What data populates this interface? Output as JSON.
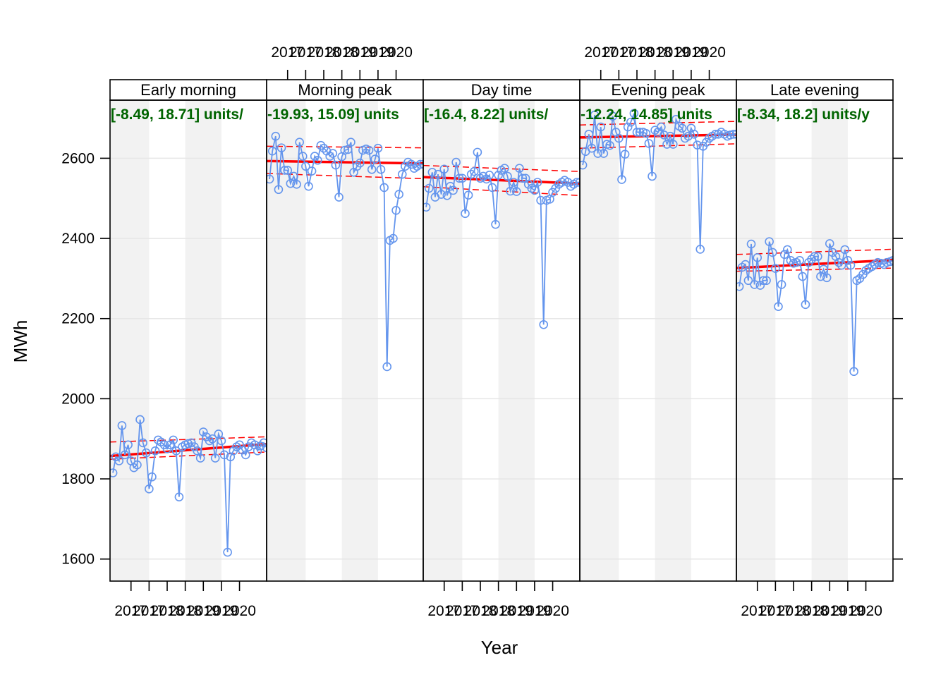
{
  "chart_data": {
    "type": "line",
    "xlabel": "Year",
    "ylabel": "MWh",
    "ylim": [
      1545,
      2745
    ],
    "xlim": [
      2016.42,
      2020.75
    ],
    "y_ticks": [
      1600,
      1800,
      2000,
      2200,
      2400,
      2600
    ],
    "x_ticks": [
      2017,
      2017.5,
      2018,
      2018.5,
      2019,
      2019.5,
      2020
    ],
    "x_tick_labels": [
      "2017",
      "2017",
      "2018",
      "2018",
      "2019",
      "2019",
      "2020"
    ],
    "shaded_year_bands": [
      [
        2016.42,
        2017.5
      ],
      [
        2018.5,
        2019.5
      ]
    ],
    "grid": true,
    "colors": {
      "series": "#6495ED",
      "trend": "#FF0000",
      "annotation": "#006400",
      "band": "#F2F2F2",
      "gridline": "#E6E6E6"
    },
    "x": [
      2016.5,
      2016.58,
      2016.67,
      2016.75,
      2016.83,
      2016.92,
      2017.0,
      2017.08,
      2017.17,
      2017.25,
      2017.33,
      2017.42,
      2017.5,
      2017.58,
      2017.67,
      2017.75,
      2017.83,
      2017.92,
      2018.0,
      2018.08,
      2018.17,
      2018.25,
      2018.33,
      2018.42,
      2018.5,
      2018.58,
      2018.67,
      2018.75,
      2018.83,
      2018.92,
      2019.0,
      2019.08,
      2019.17,
      2019.25,
      2019.33,
      2019.42,
      2019.5,
      2019.58,
      2019.67,
      2019.75,
      2019.83,
      2019.92,
      2020.0,
      2020.08,
      2020.17,
      2020.25,
      2020.33,
      2020.42,
      2020.5,
      2020.58,
      2020.67,
      2020.75
    ],
    "panels": [
      {
        "name": "Early morning",
        "annotation": "[-8.49, 18.71] units/",
        "values": [
          1815,
          1855,
          1845,
          1933,
          1860,
          1885,
          1845,
          1828,
          1835,
          1948,
          1890,
          1865,
          1775,
          1805,
          1870,
          1897,
          1892,
          1885,
          1875,
          1885,
          1897,
          1870,
          1755,
          1880,
          1885,
          1888,
          1890,
          1880,
          1870,
          1852,
          1917,
          1905,
          1895,
          1900,
          1852,
          1912,
          1895,
          1860,
          1617,
          1855,
          1870,
          1880,
          1885,
          1872,
          1860,
          1880,
          1890,
          1885,
          1870,
          1882,
          1890,
          1878
        ],
        "trend": [
          1857,
          1887
        ],
        "lower": [
          1849,
          1867
        ],
        "upper": [
          1892,
          1905
        ]
      },
      {
        "name": "Morning peak",
        "annotation": "-19.93, 15.09] units",
        "values": [
          2548,
          2618,
          2655,
          2522,
          2626,
          2570,
          2570,
          2537,
          2555,
          2535,
          2640,
          2605,
          2580,
          2530,
          2568,
          2605,
          2595,
          2632,
          2625,
          2618,
          2605,
          2612,
          2583,
          2503,
          2604,
          2620,
          2622,
          2640,
          2565,
          2580,
          2588,
          2620,
          2623,
          2620,
          2572,
          2598,
          2625,
          2572,
          2527,
          2080,
          2395,
          2400,
          2470,
          2510,
          2560,
          2580,
          2590,
          2585,
          2575,
          2580,
          2585,
          2585
        ],
        "trend": [
          2593,
          2587
        ],
        "lower": [
          2562,
          2549
        ],
        "upper": [
          2630,
          2626
        ]
      },
      {
        "name": "Day time",
        "annotation": "[-16.4, 8.22] units/",
        "values": [
          2478,
          2525,
          2565,
          2503,
          2560,
          2510,
          2573,
          2507,
          2530,
          2520,
          2590,
          2550,
          2550,
          2462,
          2508,
          2560,
          2567,
          2615,
          2550,
          2555,
          2548,
          2558,
          2527,
          2435,
          2558,
          2570,
          2575,
          2555,
          2518,
          2540,
          2517,
          2575,
          2550,
          2550,
          2535,
          2525,
          2520,
          2540,
          2495,
          2185,
          2495,
          2498,
          2515,
          2525,
          2535,
          2540,
          2545,
          2540,
          2530,
          2535,
          2540,
          2540
        ],
        "trend": [
          2553,
          2537
        ],
        "lower": [
          2529,
          2507
        ],
        "upper": [
          2582,
          2567
        ]
      },
      {
        "name": "Evening peak",
        "annotation": "-12.24, 14.85] units",
        "values": [
          2583,
          2617,
          2660,
          2625,
          2708,
          2612,
          2678,
          2612,
          2635,
          2632,
          2705,
          2665,
          2650,
          2547,
          2610,
          2678,
          2690,
          2712,
          2665,
          2665,
          2665,
          2662,
          2637,
          2555,
          2670,
          2665,
          2678,
          2658,
          2635,
          2655,
          2635,
          2697,
          2680,
          2675,
          2650,
          2655,
          2675,
          2660,
          2633,
          2373,
          2630,
          2640,
          2650,
          2655,
          2660,
          2660,
          2665,
          2660,
          2655,
          2658,
          2660,
          2660
        ],
        "trend": [
          2652,
          2659
        ],
        "lower": [
          2625,
          2636
        ],
        "upper": [
          2683,
          2692
        ]
      },
      {
        "name": "Late evening",
        "annotation": "[-8.34, 18.2] units/y",
        "values": [
          2280,
          2328,
          2335,
          2295,
          2386,
          2285,
          2352,
          2283,
          2295,
          2295,
          2392,
          2365,
          2325,
          2230,
          2285,
          2360,
          2372,
          2345,
          2338,
          2340,
          2345,
          2305,
          2235,
          2340,
          2348,
          2355,
          2355,
          2305,
          2323,
          2302,
          2387,
          2365,
          2355,
          2340,
          2333,
          2372,
          2345,
          2333,
          2068,
          2295,
          2300,
          2310,
          2320,
          2325,
          2330,
          2335,
          2340,
          2338,
          2335,
          2340,
          2342,
          2345
        ],
        "trend": [
          2326,
          2346
        ],
        "lower": [
          2318,
          2326
        ],
        "upper": [
          2360,
          2373
        ]
      }
    ]
  }
}
